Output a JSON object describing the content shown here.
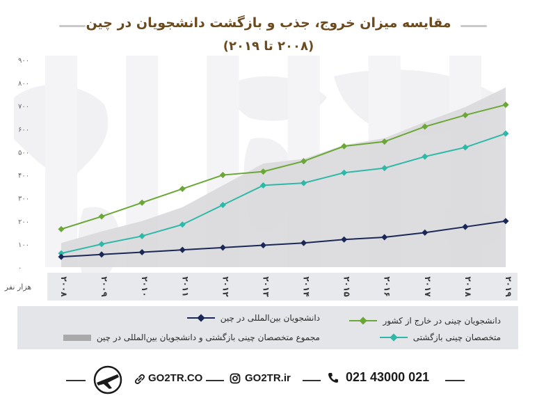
{
  "title": "مقایسه میزان خروج، جذب و بازگشت دانشجویان در چین",
  "subtitle": "(۲۰۰۸ تا ۲۰۱۹)",
  "colors": {
    "green": "#6aa736",
    "teal": "#2fb8a8",
    "navy": "#1b2857",
    "area": "#d9d9dc",
    "title": "#6b4a1e"
  },
  "chart_data": {
    "type": "line",
    "title": "مقایسه میزان خروج، جذب و بازگشت دانشجویان در چین",
    "subtitle": "(۲۰۰۸ تا ۲۰۱۹)",
    "xlabel": "هزار نفر",
    "ylabel": "",
    "ylim": [
      0,
      900
    ],
    "yticks": [
      "۰",
      "۱۰۰",
      "۲۰۰",
      "۳۰۰",
      "۴۰۰",
      "۵۰۰",
      "۶۰۰",
      "۷۰۰",
      "۸۰۰",
      "۹۰۰"
    ],
    "categories": [
      "۲۰۰۸",
      "۲۰۰۹",
      "۲۰۱۰",
      "۲۰۱۱",
      "۲۰۱۲",
      "۲۰۱۳",
      "۲۰۱۴",
      "۲۰۱۵",
      "۲۰۱۶",
      "۲۰۱۷",
      "۲۰۱۸",
      "۲۰۱۹"
    ],
    "series": [
      {
        "name": "دانشجویان چینی در خارج از کشور",
        "type": "line",
        "color": "#6aa736",
        "values": [
          165,
          220,
          280,
          340,
          400,
          415,
          460,
          525,
          545,
          610,
          660,
          705
        ]
      },
      {
        "name": "متخصصان چینی بازگشتی",
        "type": "line",
        "color": "#2fb8a8",
        "values": [
          60,
          100,
          135,
          185,
          270,
          355,
          365,
          410,
          430,
          480,
          520,
          580
        ]
      },
      {
        "name": "دانشجویان بین‌المللی در چین",
        "type": "line",
        "color": "#1b2857",
        "values": [
          45,
          55,
          65,
          75,
          85,
          95,
          105,
          120,
          130,
          150,
          175,
          200
        ]
      },
      {
        "name": "مجموع متخصصان چینی بازگشتی و دانشجویان بین‌المللی در چین",
        "type": "area",
        "color": "#d9d9dc",
        "values": [
          105,
          155,
          200,
          260,
          355,
          450,
          470,
          530,
          560,
          630,
          695,
          780
        ]
      }
    ],
    "grid": false,
    "legend": "bottom"
  },
  "legend": {
    "green": "دانشجویان چینی در خارج از کشور",
    "navy": "دانشجویان بین‌المللی در چین",
    "teal": "متخصصان چینی بازگشتی",
    "area": "مجموع متخصصان چینی بازگشتی و دانشجویان بین‌المللی در چین"
  },
  "footer": {
    "site": "GO2TR.CO",
    "instagram": "GO2TR.ir",
    "phone": "021 43000 021",
    "icons": [
      "plane-logo-icon",
      "link-icon",
      "instagram-icon",
      "phone-icon"
    ]
  }
}
